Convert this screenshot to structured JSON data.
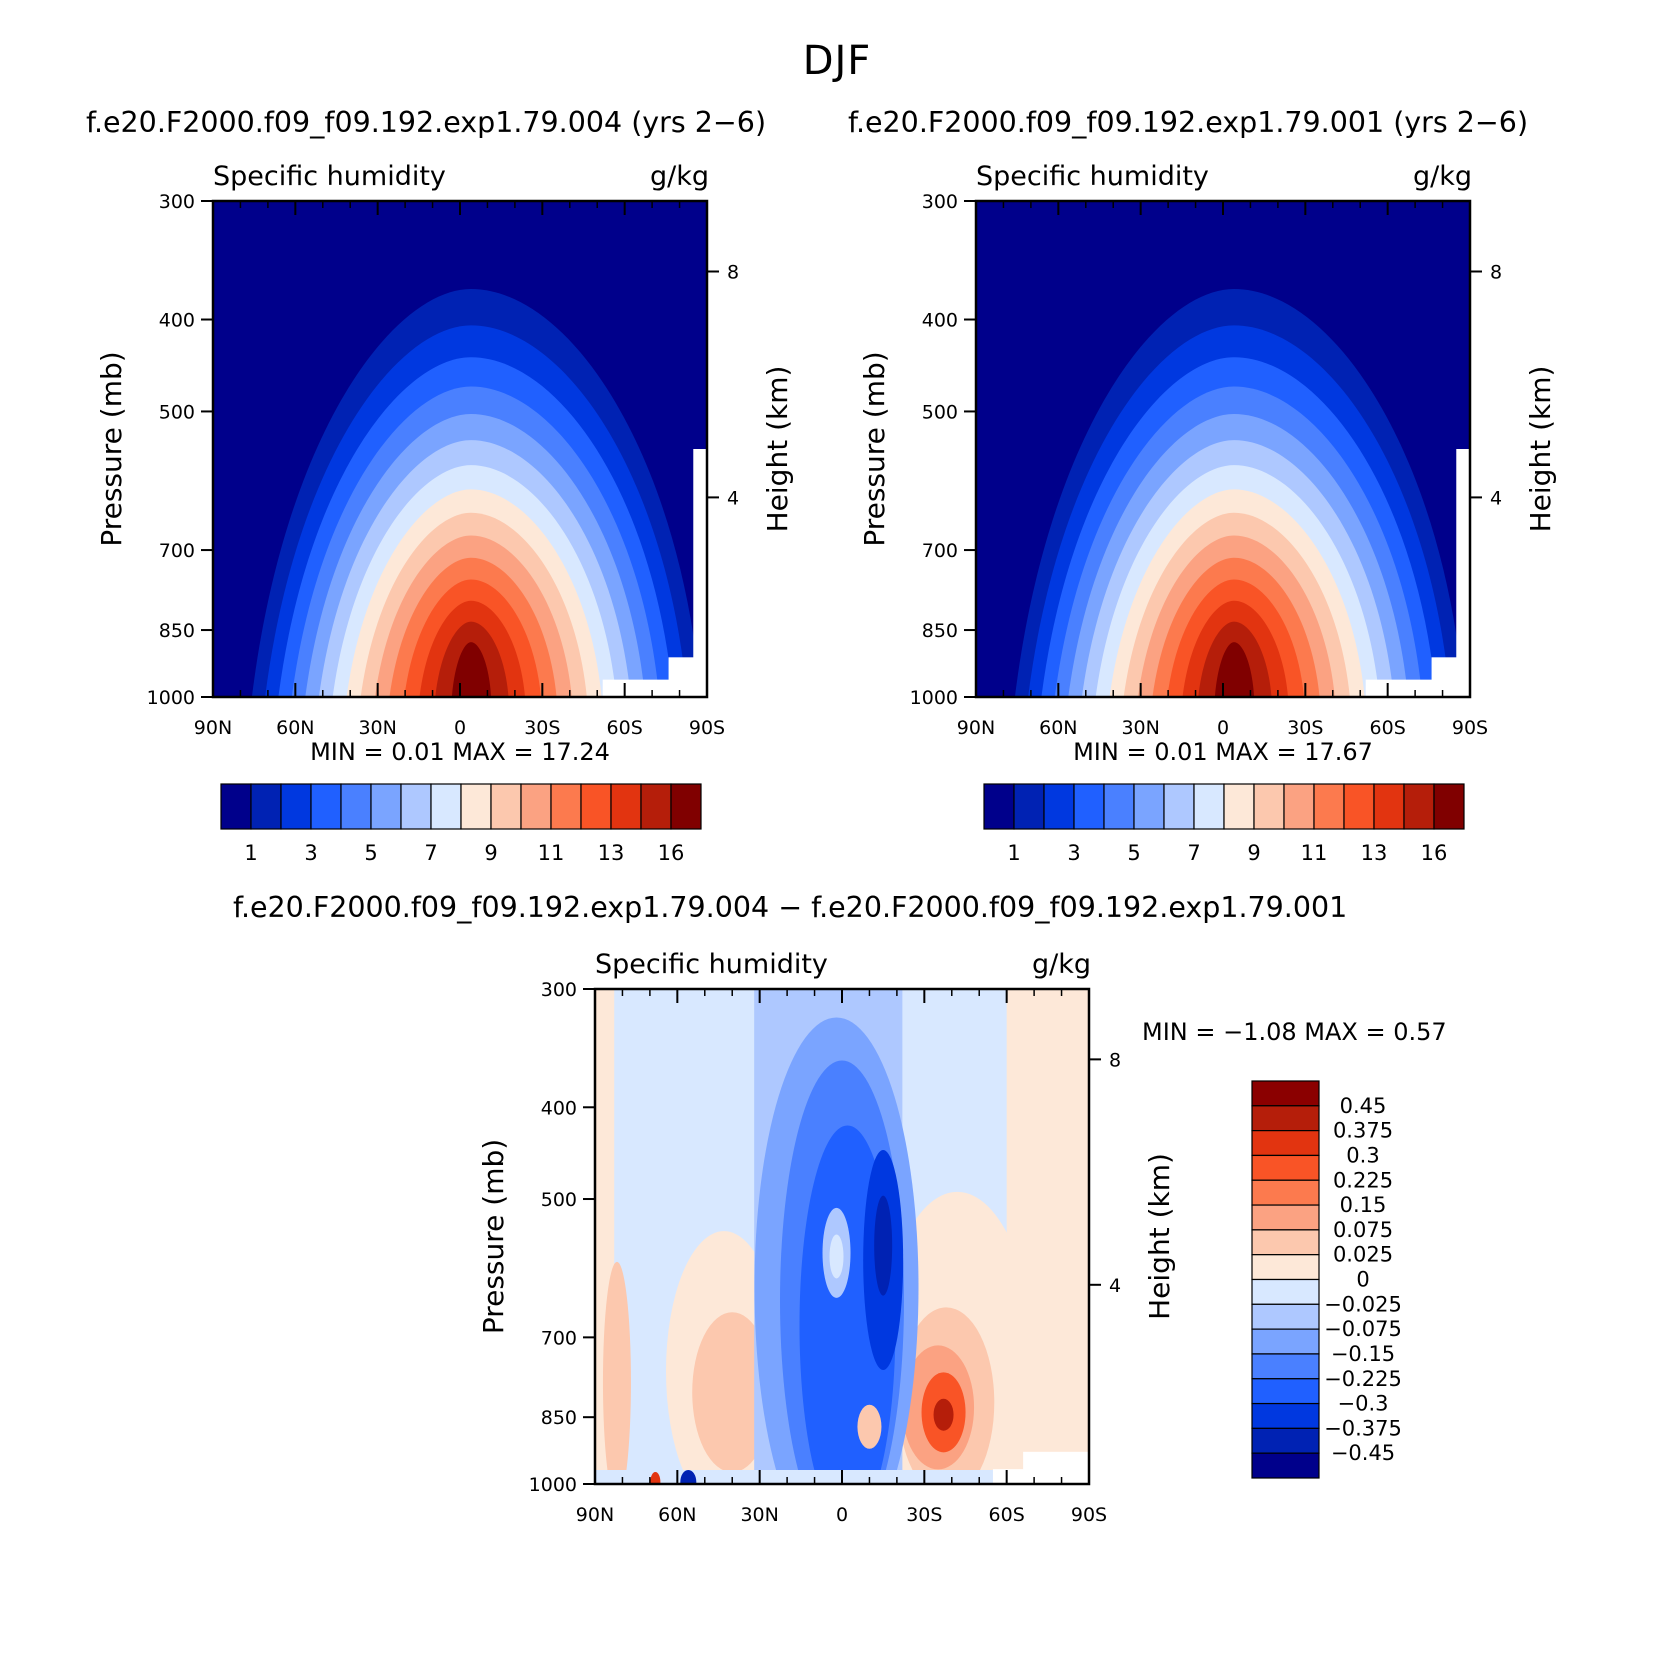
{
  "figure": {
    "title": "DJF"
  },
  "panels": [
    {
      "run_title": "f.e20.F2000.f09_f09.192.exp1.79.004 (yrs 2−6)",
      "variable": "Specific humidity",
      "units": "g/kg",
      "stats": "MIN =     0.01   MAX =   17.24"
    },
    {
      "run_title": "f.e20.F2000.f09_f09.192.exp1.79.001 (yrs 2−6)",
      "variable": "Specific humidity",
      "units": "g/kg",
      "stats": "MIN =     0.01   MAX =   17.67"
    },
    {
      "run_title": "f.e20.F2000.f09_f09.192.exp1.79.004 − f.e20.F2000.f09_f09.192.exp1.79.001",
      "variable": "Specific humidity",
      "units": "g/kg",
      "stats": "MIN =   −1.08   MAX =     0.57"
    }
  ],
  "chart_data": [
    {
      "type": "heatmap",
      "title": "Specific humidity",
      "units": "g/kg",
      "x": [
        "90N",
        "60N",
        "30N",
        "0",
        "30S",
        "60S",
        "90S"
      ],
      "x_values": [
        90,
        60,
        30,
        0,
        -30,
        -60,
        -90
      ],
      "xlim": [
        90,
        -90
      ],
      "ylabel": "Pressure (mb)",
      "y_ticks": [
        300,
        400,
        500,
        700,
        850,
        1000
      ],
      "ylim": [
        1000,
        300
      ],
      "y_scale": "log",
      "right_axis_label": "Height (km)",
      "right_axis_ticks": [
        4,
        8
      ],
      "min": 0.01,
      "max": 17.24,
      "colorbar_labels": [
        "1",
        "3",
        "5",
        "7",
        "9",
        "11",
        "13",
        "16"
      ],
      "colorbar_levels": [
        1,
        2,
        3,
        4,
        5,
        6,
        7,
        8,
        9,
        10,
        11,
        12,
        13,
        14,
        16
      ],
      "colors": [
        "#00008b",
        "#0022b3",
        "#0038e0",
        "#2060ff",
        "#4a80ff",
        "#7aa4ff",
        "#aec8ff",
        "#d8e8ff",
        "#fde8d8",
        "#fcc8ae",
        "#fba282",
        "#fc7a4e",
        "#f95426",
        "#e23410",
        "#b51e0a",
        "#800000"
      ],
      "grid": false
    },
    {
      "type": "heatmap",
      "title": "Specific humidity",
      "units": "g/kg",
      "x": [
        "90N",
        "60N",
        "30N",
        "0",
        "30S",
        "60S",
        "90S"
      ],
      "x_values": [
        90,
        60,
        30,
        0,
        -30,
        -60,
        -90
      ],
      "xlim": [
        90,
        -90
      ],
      "ylabel": "Pressure (mb)",
      "y_ticks": [
        300,
        400,
        500,
        700,
        850,
        1000
      ],
      "ylim": [
        1000,
        300
      ],
      "y_scale": "log",
      "right_axis_label": "Height (km)",
      "right_axis_ticks": [
        4,
        8
      ],
      "min": 0.01,
      "max": 17.67,
      "colorbar_labels": [
        "1",
        "3",
        "5",
        "7",
        "9",
        "11",
        "13",
        "16"
      ],
      "colorbar_levels": [
        1,
        2,
        3,
        4,
        5,
        6,
        7,
        8,
        9,
        10,
        11,
        12,
        13,
        14,
        16
      ],
      "colors": [
        "#00008b",
        "#0022b3",
        "#0038e0",
        "#2060ff",
        "#4a80ff",
        "#7aa4ff",
        "#aec8ff",
        "#d8e8ff",
        "#fde8d8",
        "#fcc8ae",
        "#fba282",
        "#fc7a4e",
        "#f95426",
        "#e23410",
        "#b51e0a",
        "#800000"
      ],
      "grid": false
    },
    {
      "type": "heatmap",
      "title": "Specific humidity",
      "units": "g/kg",
      "x": [
        "90N",
        "60N",
        "30N",
        "0",
        "30S",
        "60S",
        "90S"
      ],
      "x_values": [
        90,
        60,
        30,
        0,
        -30,
        -60,
        -90
      ],
      "xlim": [
        90,
        -90
      ],
      "ylabel": "Pressure (mb)",
      "y_ticks": [
        300,
        400,
        500,
        700,
        850,
        1000
      ],
      "ylim": [
        1000,
        300
      ],
      "y_scale": "log",
      "right_axis_label": "Height (km)",
      "right_axis_ticks": [
        4,
        8
      ],
      "min": -1.08,
      "max": 0.57,
      "colorbar_labels": [
        "0.45",
        "0.375",
        "0.3",
        "0.225",
        "0.15",
        "0.075",
        "0.025",
        "0",
        "−0.025",
        "−0.075",
        "−0.15",
        "−0.225",
        "−0.3",
        "−0.375",
        "−0.45"
      ],
      "colorbar_levels": [
        0.45,
        0.375,
        0.3,
        0.225,
        0.15,
        0.075,
        0.025,
        0,
        -0.025,
        -0.075,
        -0.15,
        -0.225,
        -0.3,
        -0.375,
        -0.45
      ],
      "colors": [
        "#8b0000",
        "#b51e0a",
        "#e23410",
        "#f95426",
        "#fc7a4e",
        "#fba282",
        "#fcc8ae",
        "#fde8d8",
        "#d8e8ff",
        "#aec8ff",
        "#7aa4ff",
        "#4a80ff",
        "#2060ff",
        "#0038e0",
        "#0022b3",
        "#00008b"
      ],
      "grid": false
    }
  ]
}
